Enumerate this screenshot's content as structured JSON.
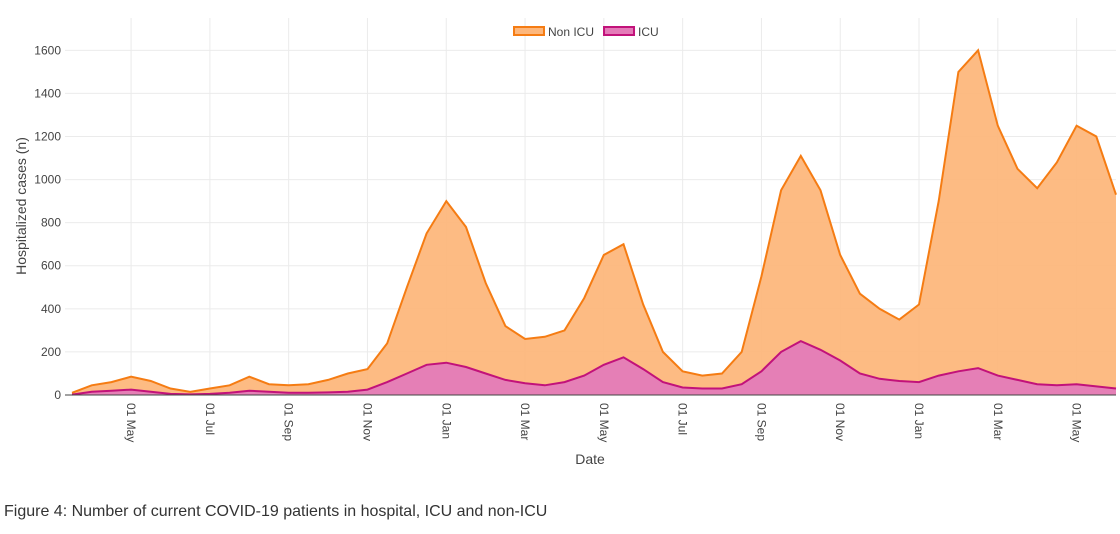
{
  "chart_data": {
    "type": "area",
    "caption": "Figure 4: Number of current COVID-19 patients in hospital, ICU and non-ICU",
    "x_label": "Date",
    "y_label": "Hospitalized cases (n)",
    "categories": [
      null,
      null,
      null,
      "01 May",
      null,
      null,
      null,
      "01 Jul",
      null,
      null,
      null,
      "01 Sep",
      null,
      null,
      null,
      "01 Nov",
      null,
      null,
      null,
      "01 Jan",
      null,
      null,
      null,
      "01 Mar",
      null,
      null,
      null,
      "01 May",
      null,
      null,
      null,
      "01 Jul",
      null,
      null,
      null,
      "01 Sep",
      null,
      null,
      null,
      "01 Nov",
      null,
      null,
      null,
      "01 Jan",
      null,
      null,
      null,
      "01 Mar",
      null,
      null,
      null,
      "01 May",
      null,
      null
    ],
    "series": [
      {
        "name": "Non ICU",
        "color": "#f57c13",
        "fill": "#fdb77c",
        "values": [
          10,
          45,
          60,
          85,
          65,
          30,
          15,
          30,
          45,
          85,
          50,
          45,
          50,
          70,
          100,
          120,
          240,
          500,
          750,
          900,
          780,
          520,
          320,
          260,
          270,
          300,
          450,
          650,
          700,
          420,
          200,
          110,
          90,
          100,
          200,
          550,
          950,
          1110,
          950,
          650,
          470,
          400,
          350,
          420,
          900,
          1500,
          1600,
          1250,
          1050,
          960,
          1080,
          1250,
          1200,
          930
        ]
      },
      {
        "name": "ICU",
        "color": "#c2127a",
        "fill": "#e47bb8",
        "values": [
          2,
          15,
          20,
          25,
          15,
          5,
          3,
          5,
          10,
          20,
          15,
          10,
          10,
          12,
          15,
          25,
          60,
          100,
          140,
          150,
          130,
          100,
          70,
          55,
          45,
          60,
          90,
          140,
          175,
          120,
          60,
          35,
          30,
          30,
          50,
          110,
          200,
          250,
          210,
          160,
          100,
          75,
          65,
          60,
          90,
          110,
          125,
          90,
          70,
          50,
          45,
          50,
          40,
          30
        ]
      }
    ],
    "ylim": [
      0,
      1750
    ],
    "yticks": [
      0,
      200,
      400,
      600,
      800,
      1000,
      1200,
      1400,
      1600
    ],
    "grid": true,
    "legend": "top"
  }
}
